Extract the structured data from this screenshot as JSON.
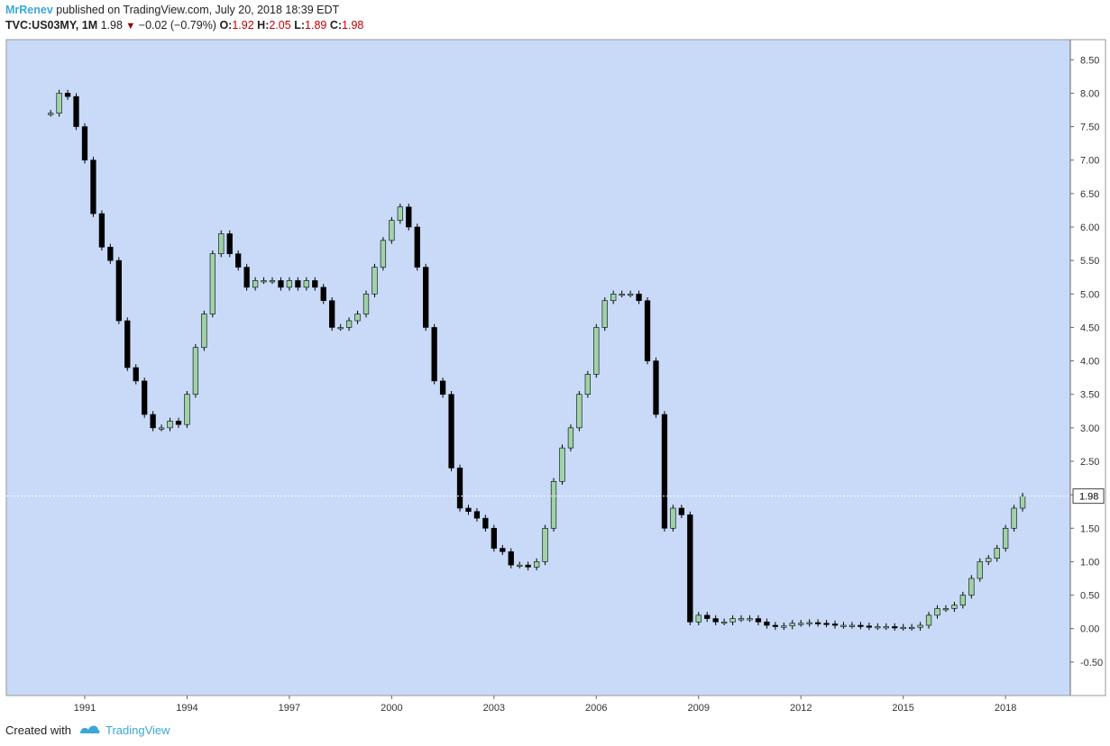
{
  "header": {
    "author": "MrRenev",
    "published": "published on TradingView.com, July 20, 2018 18:39 EDT",
    "symbol": "TVC:US03MY, 1M",
    "last": "1.98",
    "change": "−0.02 (−0.79%)",
    "o_label": "O:",
    "o_value": "1.92",
    "h_label": "H:",
    "h_value": "2.05",
    "l_label": "L:",
    "l_value": "1.89",
    "c_label": "C:",
    "c_value": "1.98"
  },
  "footer": {
    "created_with": "Created with",
    "brand": "TradingView"
  },
  "colors": {
    "background": "#c8daf7",
    "up": "#9fd2a8",
    "down": "#000000",
    "wick": "#000000",
    "price_line": "#ffffff"
  },
  "chart_data": {
    "type": "line",
    "subtype": "candlestick",
    "series_name": "TVC:US03MY",
    "interval": "1M",
    "last_price_label": "1.98",
    "x_ticks": [
      "1991",
      "1994",
      "1997",
      "2000",
      "2003",
      "2006",
      "2009",
      "2012",
      "2015",
      "2018"
    ],
    "y_ticks": [
      "8.50",
      "8.00",
      "7.50",
      "7.00",
      "6.50",
      "6.00",
      "5.50",
      "5.00",
      "4.50",
      "4.00",
      "3.50",
      "3.00",
      "2.50",
      "2.00",
      "1.50",
      "1.00",
      "0.50",
      "0.00",
      "-0.50"
    ],
    "xlim": [
      1988.7,
      2019.9
    ],
    "ylim": [
      -1.0,
      8.8
    ],
    "series": [
      {
        "name": "US03MY",
        "x": [
          1990.0,
          1990.25,
          1990.5,
          1990.75,
          1991.0,
          1991.25,
          1991.5,
          1991.75,
          1992.0,
          1992.25,
          1992.5,
          1992.75,
          1993.0,
          1993.25,
          1993.5,
          1993.75,
          1994.0,
          1994.25,
          1994.5,
          1994.75,
          1995.0,
          1995.25,
          1995.5,
          1995.75,
          1996.0,
          1996.25,
          1996.5,
          1996.75,
          1997.0,
          1997.25,
          1997.5,
          1997.75,
          1998.0,
          1998.25,
          1998.5,
          1998.75,
          1999.0,
          1999.25,
          1999.5,
          1999.75,
          2000.0,
          2000.25,
          2000.5,
          2000.75,
          2001.0,
          2001.25,
          2001.5,
          2001.75,
          2002.0,
          2002.25,
          2002.5,
          2002.75,
          2003.0,
          2003.25,
          2003.5,
          2003.75,
          2004.0,
          2004.25,
          2004.5,
          2004.75,
          2005.0,
          2005.25,
          2005.5,
          2005.75,
          2006.0,
          2006.25,
          2006.5,
          2006.75,
          2007.0,
          2007.25,
          2007.5,
          2007.75,
          2008.0,
          2008.25,
          2008.5,
          2008.75,
          2009.0,
          2009.25,
          2009.5,
          2009.75,
          2010.0,
          2010.25,
          2010.5,
          2010.75,
          2011.0,
          2011.25,
          2011.5,
          2011.75,
          2012.0,
          2012.25,
          2012.5,
          2012.75,
          2013.0,
          2013.25,
          2013.5,
          2013.75,
          2014.0,
          2014.25,
          2014.5,
          2014.75,
          2015.0,
          2015.25,
          2015.5,
          2015.75,
          2016.0,
          2016.25,
          2016.5,
          2016.75,
          2017.0,
          2017.25,
          2017.5,
          2017.75,
          2018.0,
          2018.25,
          2018.5
        ],
        "y": [
          7.7,
          8.0,
          7.95,
          7.5,
          7.0,
          6.2,
          5.7,
          5.5,
          4.6,
          3.9,
          3.7,
          3.2,
          3.0,
          3.0,
          3.1,
          3.05,
          3.5,
          4.2,
          4.7,
          5.6,
          5.9,
          5.6,
          5.4,
          5.1,
          5.2,
          5.2,
          5.2,
          5.1,
          5.2,
          5.1,
          5.2,
          5.1,
          4.9,
          4.5,
          4.5,
          4.6,
          4.7,
          5.0,
          5.4,
          5.8,
          6.1,
          6.3,
          6.0,
          5.4,
          4.5,
          3.7,
          3.5,
          2.4,
          1.8,
          1.75,
          1.65,
          1.5,
          1.2,
          1.15,
          0.95,
          0.95,
          0.92,
          1.0,
          1.5,
          2.2,
          2.7,
          3.0,
          3.5,
          3.8,
          4.5,
          4.9,
          5.0,
          5.0,
          5.0,
          4.9,
          4.0,
          3.2,
          1.5,
          1.8,
          1.7,
          0.1,
          0.2,
          0.15,
          0.1,
          0.1,
          0.15,
          0.15,
          0.15,
          0.1,
          0.05,
          0.03,
          0.04,
          0.08,
          0.08,
          0.09,
          0.08,
          0.07,
          0.05,
          0.05,
          0.05,
          0.04,
          0.03,
          0.03,
          0.03,
          0.02,
          0.02,
          0.02,
          0.05,
          0.2,
          0.3,
          0.3,
          0.35,
          0.5,
          0.75,
          1.0,
          1.05,
          1.2,
          1.5,
          1.8,
          1.98
        ]
      }
    ]
  }
}
